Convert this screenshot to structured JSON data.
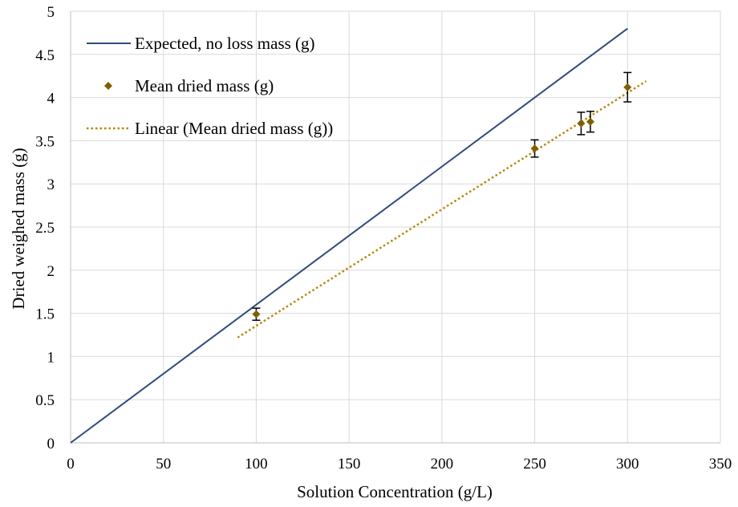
{
  "chart_data": {
    "type": "scatter",
    "xlabel": "Solution Concentration (g/L)",
    "ylabel": "Dried weighed mass (g)",
    "xlim": [
      0,
      350
    ],
    "ylim": [
      0,
      5
    ],
    "x_ticks": [
      0,
      50,
      100,
      150,
      200,
      250,
      300,
      350
    ],
    "y_ticks": [
      0,
      0.5,
      1,
      1.5,
      2,
      2.5,
      3,
      3.5,
      4,
      4.5,
      5
    ],
    "x_tick_labels": [
      "0",
      "50",
      "100",
      "150",
      "200",
      "250",
      "300",
      "350"
    ],
    "y_tick_labels": [
      "0",
      "0.5",
      "1",
      "1.5",
      "2",
      "2.5",
      "3",
      "3.5",
      "4",
      "4.5",
      "5"
    ],
    "grid": true,
    "legend_position": "top-left",
    "series": [
      {
        "name": "Expected, no loss mass (g)",
        "kind": "line",
        "style": "solid",
        "color": "#2f4b7c",
        "x": [
          0,
          300
        ],
        "y": [
          0,
          4.8
        ]
      },
      {
        "name": "Mean dried mass (g)",
        "kind": "markers",
        "marker": "diamond",
        "color": "#7f6000",
        "x": [
          100,
          250,
          275,
          280,
          300
        ],
        "y": [
          1.49,
          3.41,
          3.7,
          3.72,
          4.12
        ],
        "error": [
          0.07,
          0.1,
          0.13,
          0.12,
          0.17
        ]
      },
      {
        "name": "Linear (Mean dried mass (g))",
        "kind": "trendline",
        "style": "dotted",
        "color": "#b8860b",
        "x": [
          90,
          310
        ],
        "y": [
          1.22,
          4.19
        ]
      }
    ]
  }
}
